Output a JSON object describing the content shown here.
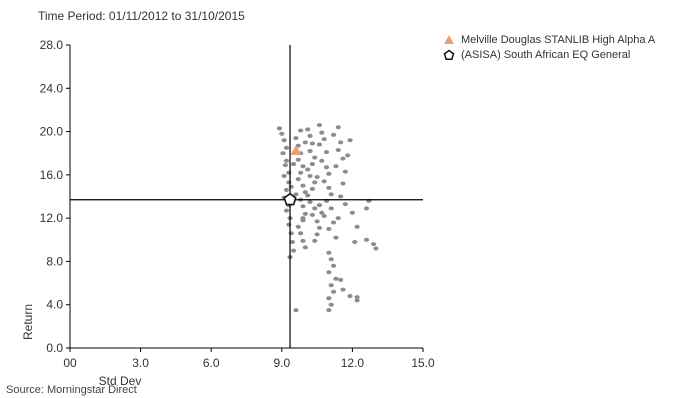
{
  "period_label": "Time Period: 01/11/2012 to 31/10/2015",
  "source_label": "Source: Morningstar Direct",
  "colors": {
    "fund": "#f0a070",
    "benchmark_stroke": "#111111",
    "peers": "#8c8c8c",
    "axis": "#000000",
    "text": "#333333"
  },
  "legend": [
    {
      "label": "Melville Douglas STANLIB High Alpha A",
      "icon": "orange-triangle-icon"
    },
    {
      "label": "(ASISA) South African EQ General",
      "icon": "black-pentagon-icon"
    }
  ],
  "chart_data": {
    "type": "scatter",
    "xlabel": "Std Dev",
    "ylabel": "Return",
    "xlim": [
      0,
      15
    ],
    "ylim": [
      0,
      28
    ],
    "x_ticks": [
      "00",
      "3.0",
      "6.0",
      "9.0",
      "12.0",
      "15.0"
    ],
    "x_tick_values": [
      0,
      3,
      6,
      9,
      12,
      15
    ],
    "y_ticks": [
      "0.0",
      "4.0",
      "8.0",
      "12.0",
      "16.0",
      "20.0",
      "24.0",
      "28.0"
    ],
    "y_tick_values": [
      0,
      4,
      8,
      12,
      16,
      20,
      24,
      28
    ],
    "reference_lines": {
      "x": 9.35,
      "y": 13.7
    },
    "fund": {
      "name": "Melville Douglas STANLIB High Alpha A",
      "x": 9.6,
      "y": 18.2
    },
    "benchmark": {
      "name": "(ASISA) South African EQ General",
      "x": 9.35,
      "y": 13.7
    },
    "peers": [
      [
        8.9,
        20.3
      ],
      [
        9.0,
        19.8
      ],
      [
        9.1,
        19.2
      ],
      [
        9.2,
        18.5
      ],
      [
        9.05,
        18.0
      ],
      [
        9.2,
        17.3
      ],
      [
        9.15,
        16.9
      ],
      [
        9.3,
        16.2
      ],
      [
        9.1,
        15.9
      ],
      [
        9.3,
        15.3
      ],
      [
        9.2,
        14.6
      ],
      [
        9.1,
        13.9
      ],
      [
        9.3,
        13.2
      ],
      [
        9.2,
        12.7
      ],
      [
        9.35,
        12.0
      ],
      [
        9.3,
        11.4
      ],
      [
        9.4,
        10.6
      ],
      [
        9.45,
        9.8
      ],
      [
        9.5,
        9.0
      ],
      [
        9.35,
        8.4
      ],
      [
        9.6,
        3.5
      ],
      [
        9.6,
        19.4
      ],
      [
        9.7,
        18.7
      ],
      [
        9.8,
        18.0
      ],
      [
        9.7,
        17.4
      ],
      [
        9.9,
        16.8
      ],
      [
        9.8,
        16.2
      ],
      [
        9.7,
        15.6
      ],
      [
        9.9,
        15.0
      ],
      [
        10.0,
        14.4
      ],
      [
        9.8,
        13.7
      ],
      [
        9.9,
        13.1
      ],
      [
        10.0,
        12.4
      ],
      [
        9.9,
        11.8
      ],
      [
        9.7,
        11.2
      ],
      [
        9.8,
        10.6
      ],
      [
        9.9,
        9.9
      ],
      [
        10.0,
        9.3
      ],
      [
        10.1,
        20.2
      ],
      [
        9.8,
        20.1
      ],
      [
        10.2,
        19.6
      ],
      [
        10.3,
        18.9
      ],
      [
        10.2,
        18.2
      ],
      [
        10.4,
        17.6
      ],
      [
        10.3,
        17.0
      ],
      [
        10.1,
        16.5
      ],
      [
        10.2,
        15.9
      ],
      [
        10.4,
        15.3
      ],
      [
        10.3,
        14.7
      ],
      [
        10.1,
        14.1
      ],
      [
        10.2,
        13.5
      ],
      [
        10.4,
        12.9
      ],
      [
        10.3,
        12.3
      ],
      [
        10.5,
        11.7
      ],
      [
        10.6,
        11.1
      ],
      [
        10.5,
        10.5
      ],
      [
        10.4,
        9.9
      ],
      [
        10.7,
        19.9
      ],
      [
        10.8,
        19.3
      ],
      [
        10.6,
        18.8
      ],
      [
        10.9,
        18.1
      ],
      [
        10.7,
        17.3
      ],
      [
        10.9,
        16.7
      ],
      [
        11.0,
        16.1
      ],
      [
        10.8,
        15.4
      ],
      [
        11.0,
        14.8
      ],
      [
        11.1,
        14.2
      ],
      [
        10.9,
        13.6
      ],
      [
        11.1,
        12.9
      ],
      [
        10.8,
        12.2
      ],
      [
        11.2,
        11.6
      ],
      [
        11.0,
        11.0
      ],
      [
        11.3,
        10.2
      ],
      [
        11.4,
        20.4
      ],
      [
        11.2,
        19.7
      ],
      [
        11.5,
        19.0
      ],
      [
        11.4,
        18.3
      ],
      [
        11.6,
        17.5
      ],
      [
        11.3,
        16.8
      ],
      [
        11.7,
        16.3
      ],
      [
        11.8,
        17.8
      ],
      [
        11.9,
        19.2
      ],
      [
        11.6,
        15.2
      ],
      [
        11.5,
        14.0
      ],
      [
        11.0,
        8.8
      ],
      [
        11.1,
        8.2
      ],
      [
        11.2,
        7.6
      ],
      [
        11.0,
        7.0
      ],
      [
        11.3,
        6.4
      ],
      [
        11.1,
        5.8
      ],
      [
        11.2,
        5.2
      ],
      [
        11.0,
        4.6
      ],
      [
        11.1,
        4.0
      ],
      [
        11.0,
        3.5
      ],
      [
        11.5,
        6.3
      ],
      [
        11.6,
        5.4
      ],
      [
        11.9,
        4.8
      ],
      [
        12.2,
        4.4
      ],
      [
        12.2,
        4.7
      ],
      [
        12.1,
        9.8
      ],
      [
        12.7,
        13.6
      ],
      [
        12.6,
        12.9
      ],
      [
        12.6,
        10.0
      ],
      [
        12.9,
        9.6
      ],
      [
        13.0,
        9.2
      ],
      [
        12.2,
        11.2
      ],
      [
        12.0,
        12.5
      ],
      [
        11.7,
        13.3
      ],
      [
        10.6,
        20.6
      ],
      [
        10.0,
        19.0
      ],
      [
        9.5,
        17.0
      ],
      [
        9.6,
        14.2
      ],
      [
        9.4,
        14.9
      ],
      [
        10.5,
        15.8
      ],
      [
        10.6,
        13.2
      ],
      [
        9.9,
        12.0
      ],
      [
        10.7,
        12.5
      ],
      [
        11.4,
        12.0
      ]
    ]
  }
}
